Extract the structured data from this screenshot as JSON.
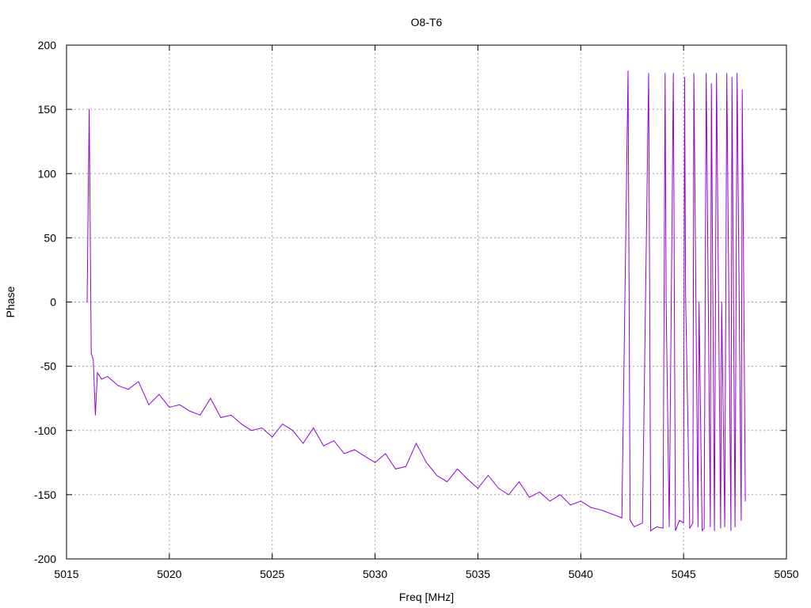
{
  "chart_data": {
    "type": "line",
    "title": "O8-T6",
    "xlabel": "Freq [MHz]",
    "ylabel": "Phase",
    "xlim": [
      5015,
      5050
    ],
    "ylim": [
      -200,
      200
    ],
    "x_ticks": [
      "5015",
      "5020",
      "5025",
      "5030",
      "5035",
      "5040",
      "5045",
      "5050"
    ],
    "y_ticks": [
      "200",
      "150",
      "100",
      "50",
      "0",
      "-50",
      "-100",
      "-150",
      "-200"
    ],
    "grid": true,
    "legend": "none",
    "series_color": "#9400d3",
    "series": [
      {
        "x": [
          5016.0,
          5016.05,
          5016.1,
          5016.15,
          5016.2,
          5016.3,
          5016.4,
          5016.5,
          5016.7,
          5017.0,
          5017.5,
          5018.0,
          5018.5,
          5019.0,
          5019.5,
          5020.0,
          5020.5,
          5021.0,
          5021.5,
          5022.0,
          5022.5,
          5023.0,
          5023.5,
          5024.0,
          5024.5,
          5025.0,
          5025.5,
          5026.0,
          5026.5,
          5027.0,
          5027.5,
          5028.0,
          5028.5,
          5029.0,
          5029.5,
          5030.0,
          5030.5,
          5031.0,
          5031.5,
          5032.0,
          5032.5,
          5033.0,
          5033.5,
          5034.0,
          5034.5,
          5035.0,
          5035.5,
          5036.0,
          5036.5,
          5037.0,
          5037.5,
          5038.0,
          5038.5,
          5039.0,
          5039.5,
          5040.0,
          5040.5,
          5041.0,
          5041.5,
          5042.0,
          5042.3,
          5042.35,
          5042.4,
          5042.6,
          5043.0,
          5043.3,
          5043.35,
          5043.4,
          5043.7,
          5044.0,
          5044.1,
          5044.15,
          5044.3,
          5044.5,
          5044.55,
          5044.6,
          5044.8,
          5045.0,
          5045.05,
          5045.1,
          5045.3,
          5045.45,
          5045.5,
          5045.7,
          5045.75,
          5045.9,
          5046.0,
          5046.1,
          5046.3,
          5046.35,
          5046.5,
          5046.6,
          5046.8,
          5046.85,
          5047.0,
          5047.1,
          5047.3,
          5047.35,
          5047.5,
          5047.6,
          5047.8,
          5047.85,
          5048.0
        ],
        "y": [
          0,
          75,
          150,
          58,
          -40,
          -45,
          -88,
          -55,
          -60,
          -58,
          -65,
          -68,
          -62,
          -80,
          -72,
          -82,
          -80,
          -85,
          -88,
          -75,
          -90,
          -88,
          -95,
          -100,
          -98,
          -105,
          -95,
          -100,
          -110,
          -98,
          -112,
          -108,
          -118,
          -115,
          -120,
          -125,
          -118,
          -130,
          -128,
          -110,
          -125,
          -135,
          -140,
          -130,
          -138,
          -145,
          -135,
          -145,
          -150,
          -140,
          -152,
          -148,
          -155,
          -150,
          -158,
          -155,
          -160,
          -162,
          -165,
          -168,
          180,
          10,
          -170,
          -175,
          -172,
          178,
          5,
          -178,
          -175,
          -176,
          178,
          0,
          -175,
          178,
          2,
          -178,
          -170,
          -172,
          175,
          5,
          -176,
          -172,
          178,
          -175,
          0,
          -178,
          -176,
          178,
          -175,
          170,
          -178,
          178,
          -176,
          0,
          -175,
          178,
          -178,
          175,
          -175,
          178,
          -170,
          165,
          -155
        ]
      }
    ]
  }
}
